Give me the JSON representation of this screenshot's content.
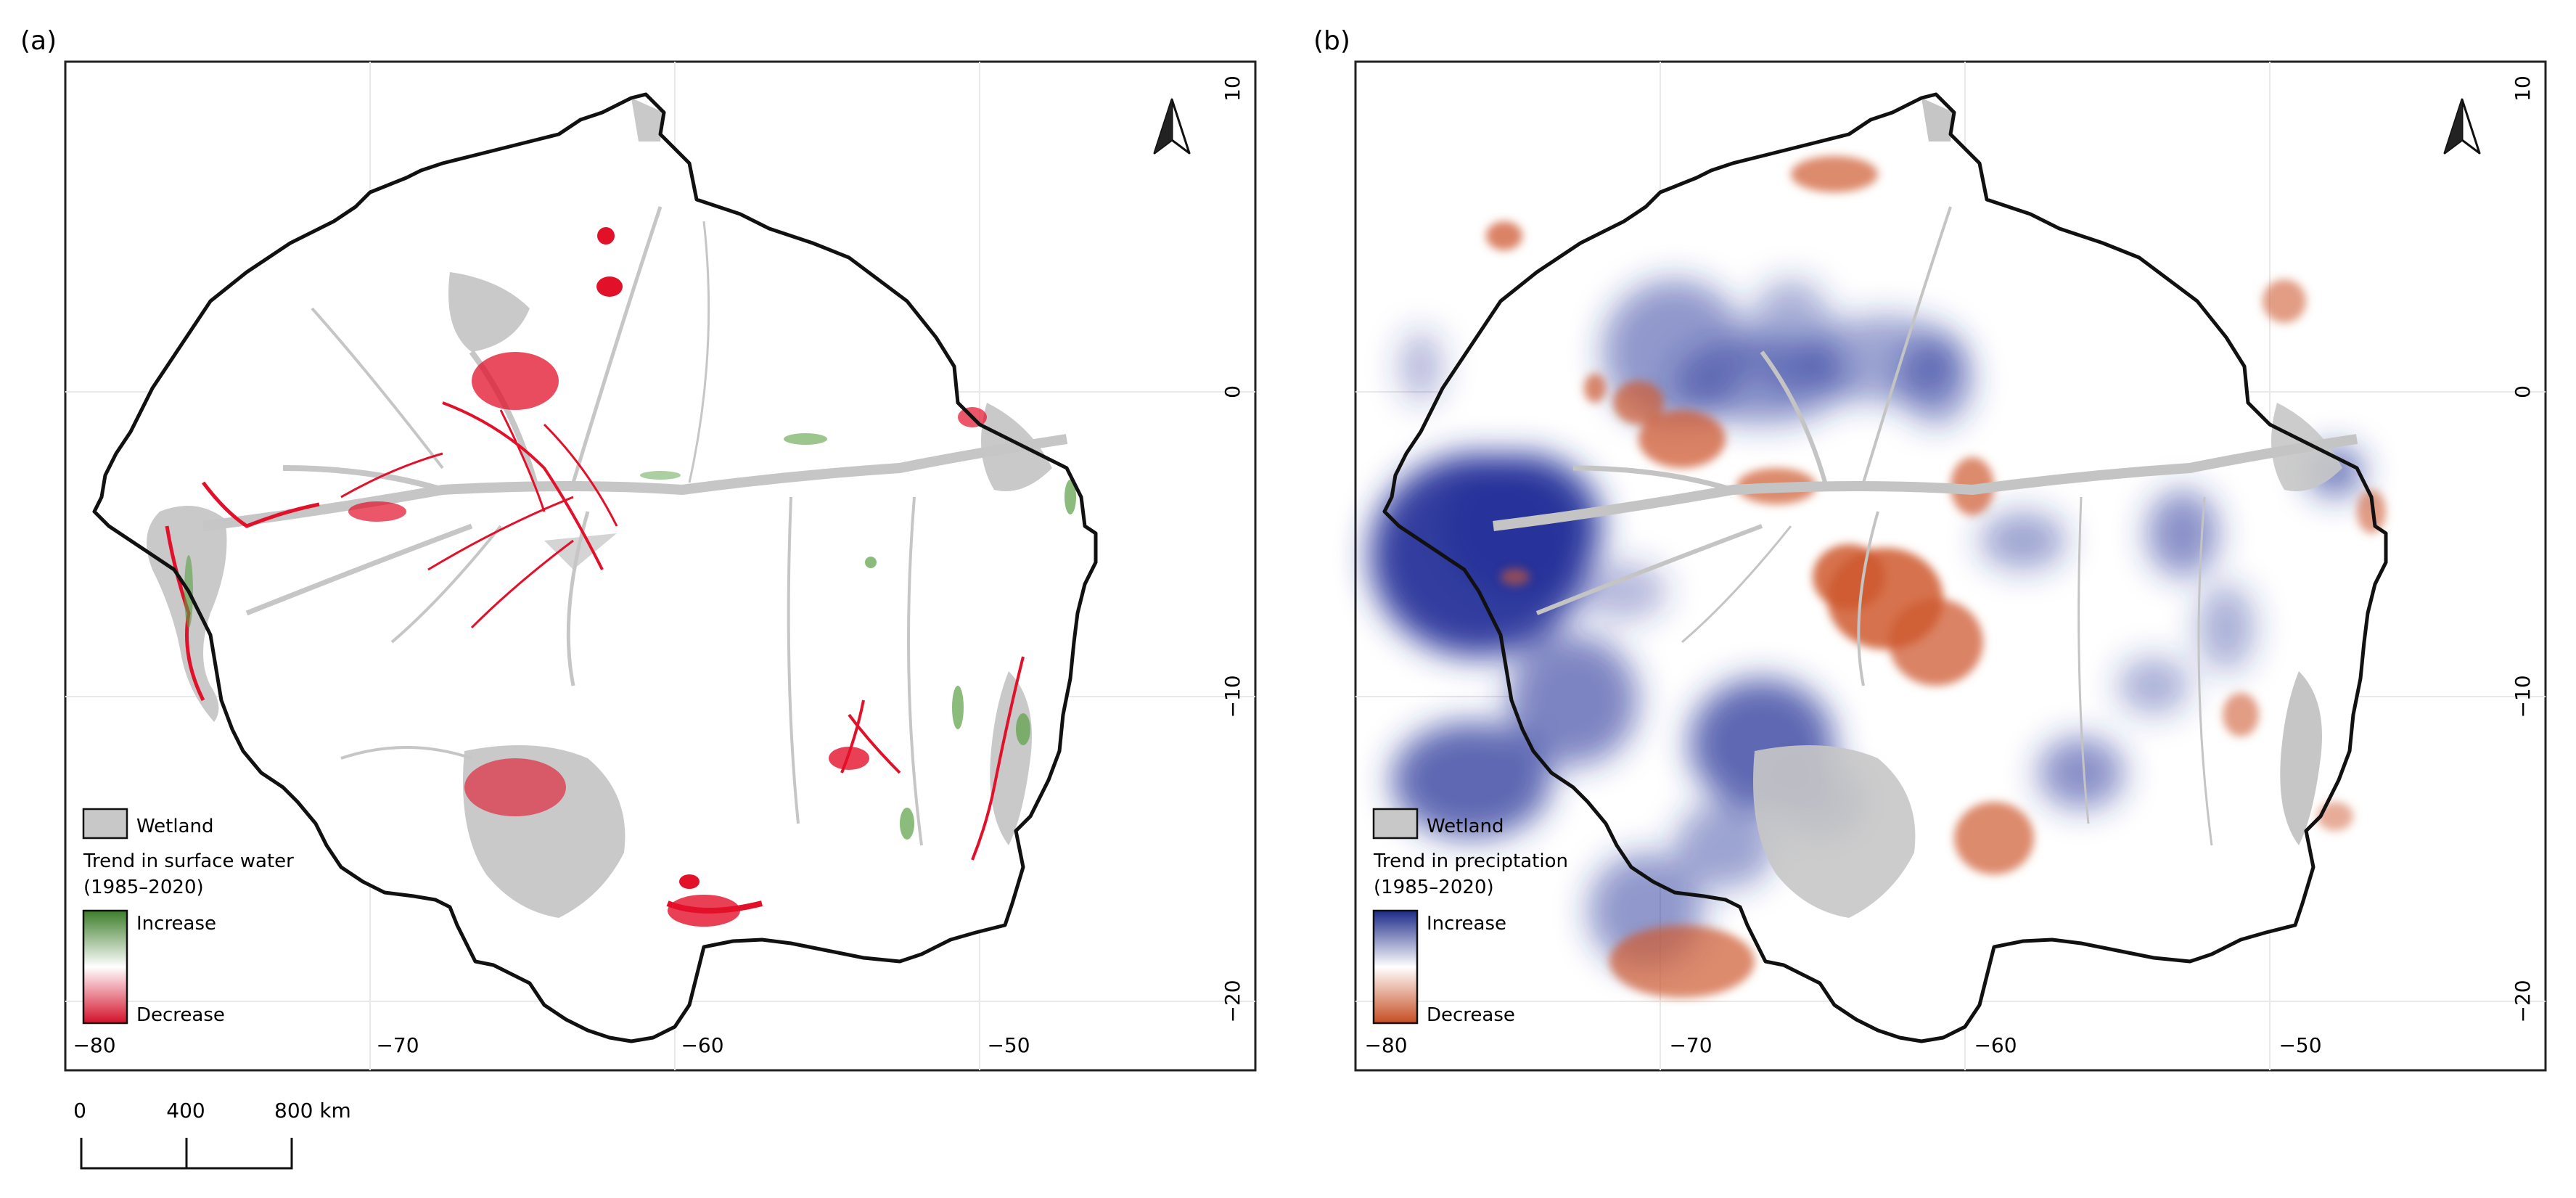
{
  "figure": {
    "colors": {
      "wetland": "#c8c8c8",
      "outline": "#111111",
      "grid": "#e6e6e6",
      "water_increase": "#4e8f3a",
      "water_decrease": "#e0102a",
      "precip_increase": "#23308f",
      "precip_decrease": "#c8552a"
    },
    "scale_bar": {
      "ticks": [
        "0",
        "400",
        "800 km"
      ]
    },
    "panels": [
      {
        "id": "a",
        "label": "(a)",
        "x_ticks": [
          "−80",
          "−70",
          "−60",
          "−50"
        ],
        "y_ticks": [
          "10",
          "0",
          "−10",
          "−20"
        ],
        "north_arrow_icon": "north-arrow-icon",
        "legend": {
          "wetland_label": "Wetland",
          "title_line1": "Trend in surface water",
          "title_line2": "(1985–2020)",
          "increase_label": "Increase",
          "decrease_label": "Decrease"
        }
      },
      {
        "id": "b",
        "label": "(b)",
        "x_ticks": [
          "−80",
          "−70",
          "−60",
          "−50"
        ],
        "y_ticks": [
          "10",
          "0",
          "−10",
          "−20"
        ],
        "north_arrow_icon": "north-arrow-icon",
        "legend": {
          "wetland_label": "Wetland",
          "title_line1": "Trend in preciptation",
          "title_line2": "(1985–2020)",
          "increase_label": "Increase",
          "decrease_label": "Decrease"
        }
      }
    ]
  }
}
